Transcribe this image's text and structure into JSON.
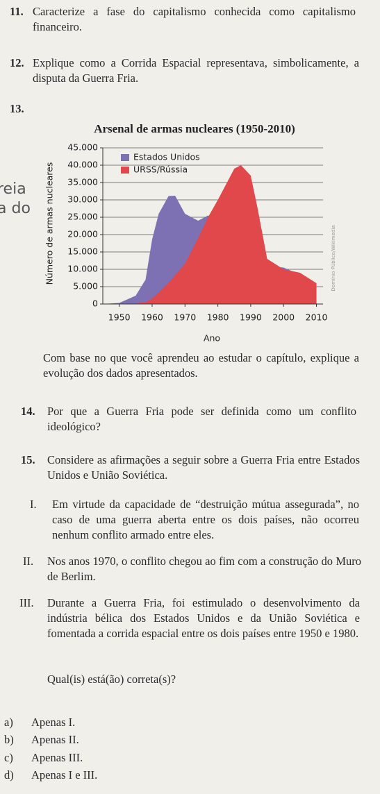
{
  "margin_fragments": [
    "reia",
    "a do"
  ],
  "questions": [
    {
      "number": "11.",
      "text": "Caracterize a fase do capitalismo conhecida como capitalismo financeiro."
    },
    {
      "number": "12.",
      "text": "Explique como a Corrida Espacial representava, simbolicamente, a disputa da Guerra Fria."
    },
    {
      "number": "13.",
      "text": "Com base no que você aprendeu ao estudar o capítulo, explique a evolução dos dados apresentados."
    },
    {
      "number": "14.",
      "text": "Por que a Guerra Fria pode ser definida como um conflito ideológico?"
    },
    {
      "number": "15.",
      "text": "Considere as afirmações a seguir sobre a Guerra Fria entre Estados Unidos e União Soviética.",
      "statements": [
        {
          "numeral": "I.",
          "text": "Em virtude da capacidade de “destruição mútua assegurada”, no caso de uma guerra aberta entre os dois países, não ocorreu nenhum conflito armado entre eles."
        },
        {
          "numeral": "II.",
          "text": "Nos anos 1970, o conflito chegou ao fim com a construção do Muro de Berlim."
        },
        {
          "numeral": "III.",
          "text": "Durante a Guerra Fria, foi estimulado o desenvolvimento da indústria bélica dos Estados Unidos e da União Soviética e fomentada a corrida espacial entre os dois países entre 1950 e 1980."
        }
      ],
      "prompt": "Qual(is) está(ão) correta(s)?",
      "options": [
        {
          "letter": "a)",
          "text": "Apenas I."
        },
        {
          "letter": "b)",
          "text": "Apenas II."
        },
        {
          "letter": "c)",
          "text": "Apenas III."
        },
        {
          "letter": "d)",
          "text": "Apenas I e III."
        }
      ]
    }
  ],
  "chart_data": {
    "type": "area",
    "title": "Arsenal de armas nucleares (1950-2010)",
    "x_label": "Ano",
    "y_label": "Número de armas nucleares",
    "source": "Domínio Público/Wikimedia",
    "x": [
      1945,
      1950,
      1955,
      1958,
      1960,
      1962,
      1965,
      1967,
      1970,
      1974,
      1977,
      1980,
      1985,
      1987,
      1990,
      1992,
      1995,
      2000,
      2005,
      2010
    ],
    "series": [
      {
        "name": "Estados Unidos",
        "color": "#7d70b3",
        "values": [
          0,
          300,
          2400,
          7000,
          18600,
          26000,
          31100,
          31200,
          26000,
          24000,
          25500,
          24000,
          23000,
          23500,
          21500,
          14000,
          11000,
          10500,
          8500,
          5000
        ]
      },
      {
        "name": "URSS/Rússia",
        "color": "#e0484b",
        "values": [
          0,
          0,
          200,
          500,
          1600,
          3300,
          6100,
          8300,
          11600,
          19000,
          25000,
          30000,
          39000,
          40000,
          37000,
          28000,
          13000,
          10000,
          9000,
          6000
        ]
      }
    ],
    "xlim": [
      1945,
      2012
    ],
    "xticks": [
      1950,
      1960,
      1970,
      1980,
      1990,
      2000,
      2010
    ],
    "ylim": [
      0,
      45000
    ],
    "yticks": [
      0,
      {
        "value": 5000,
        "label": "5.000"
      },
      {
        "value": 10000,
        "label": "10.000"
      },
      {
        "value": 15000,
        "label": "15.000"
      },
      {
        "value": 20000,
        "label": "20.000"
      },
      {
        "value": 25000,
        "label": "25.000"
      },
      {
        "value": 30000,
        "label": "30.000"
      },
      {
        "value": 35000,
        "label": "35.000"
      },
      {
        "value": 40000,
        "label": "40.000"
      },
      {
        "value": 45000,
        "label": "45.000"
      }
    ],
    "grid": true,
    "legend": "top-left"
  }
}
